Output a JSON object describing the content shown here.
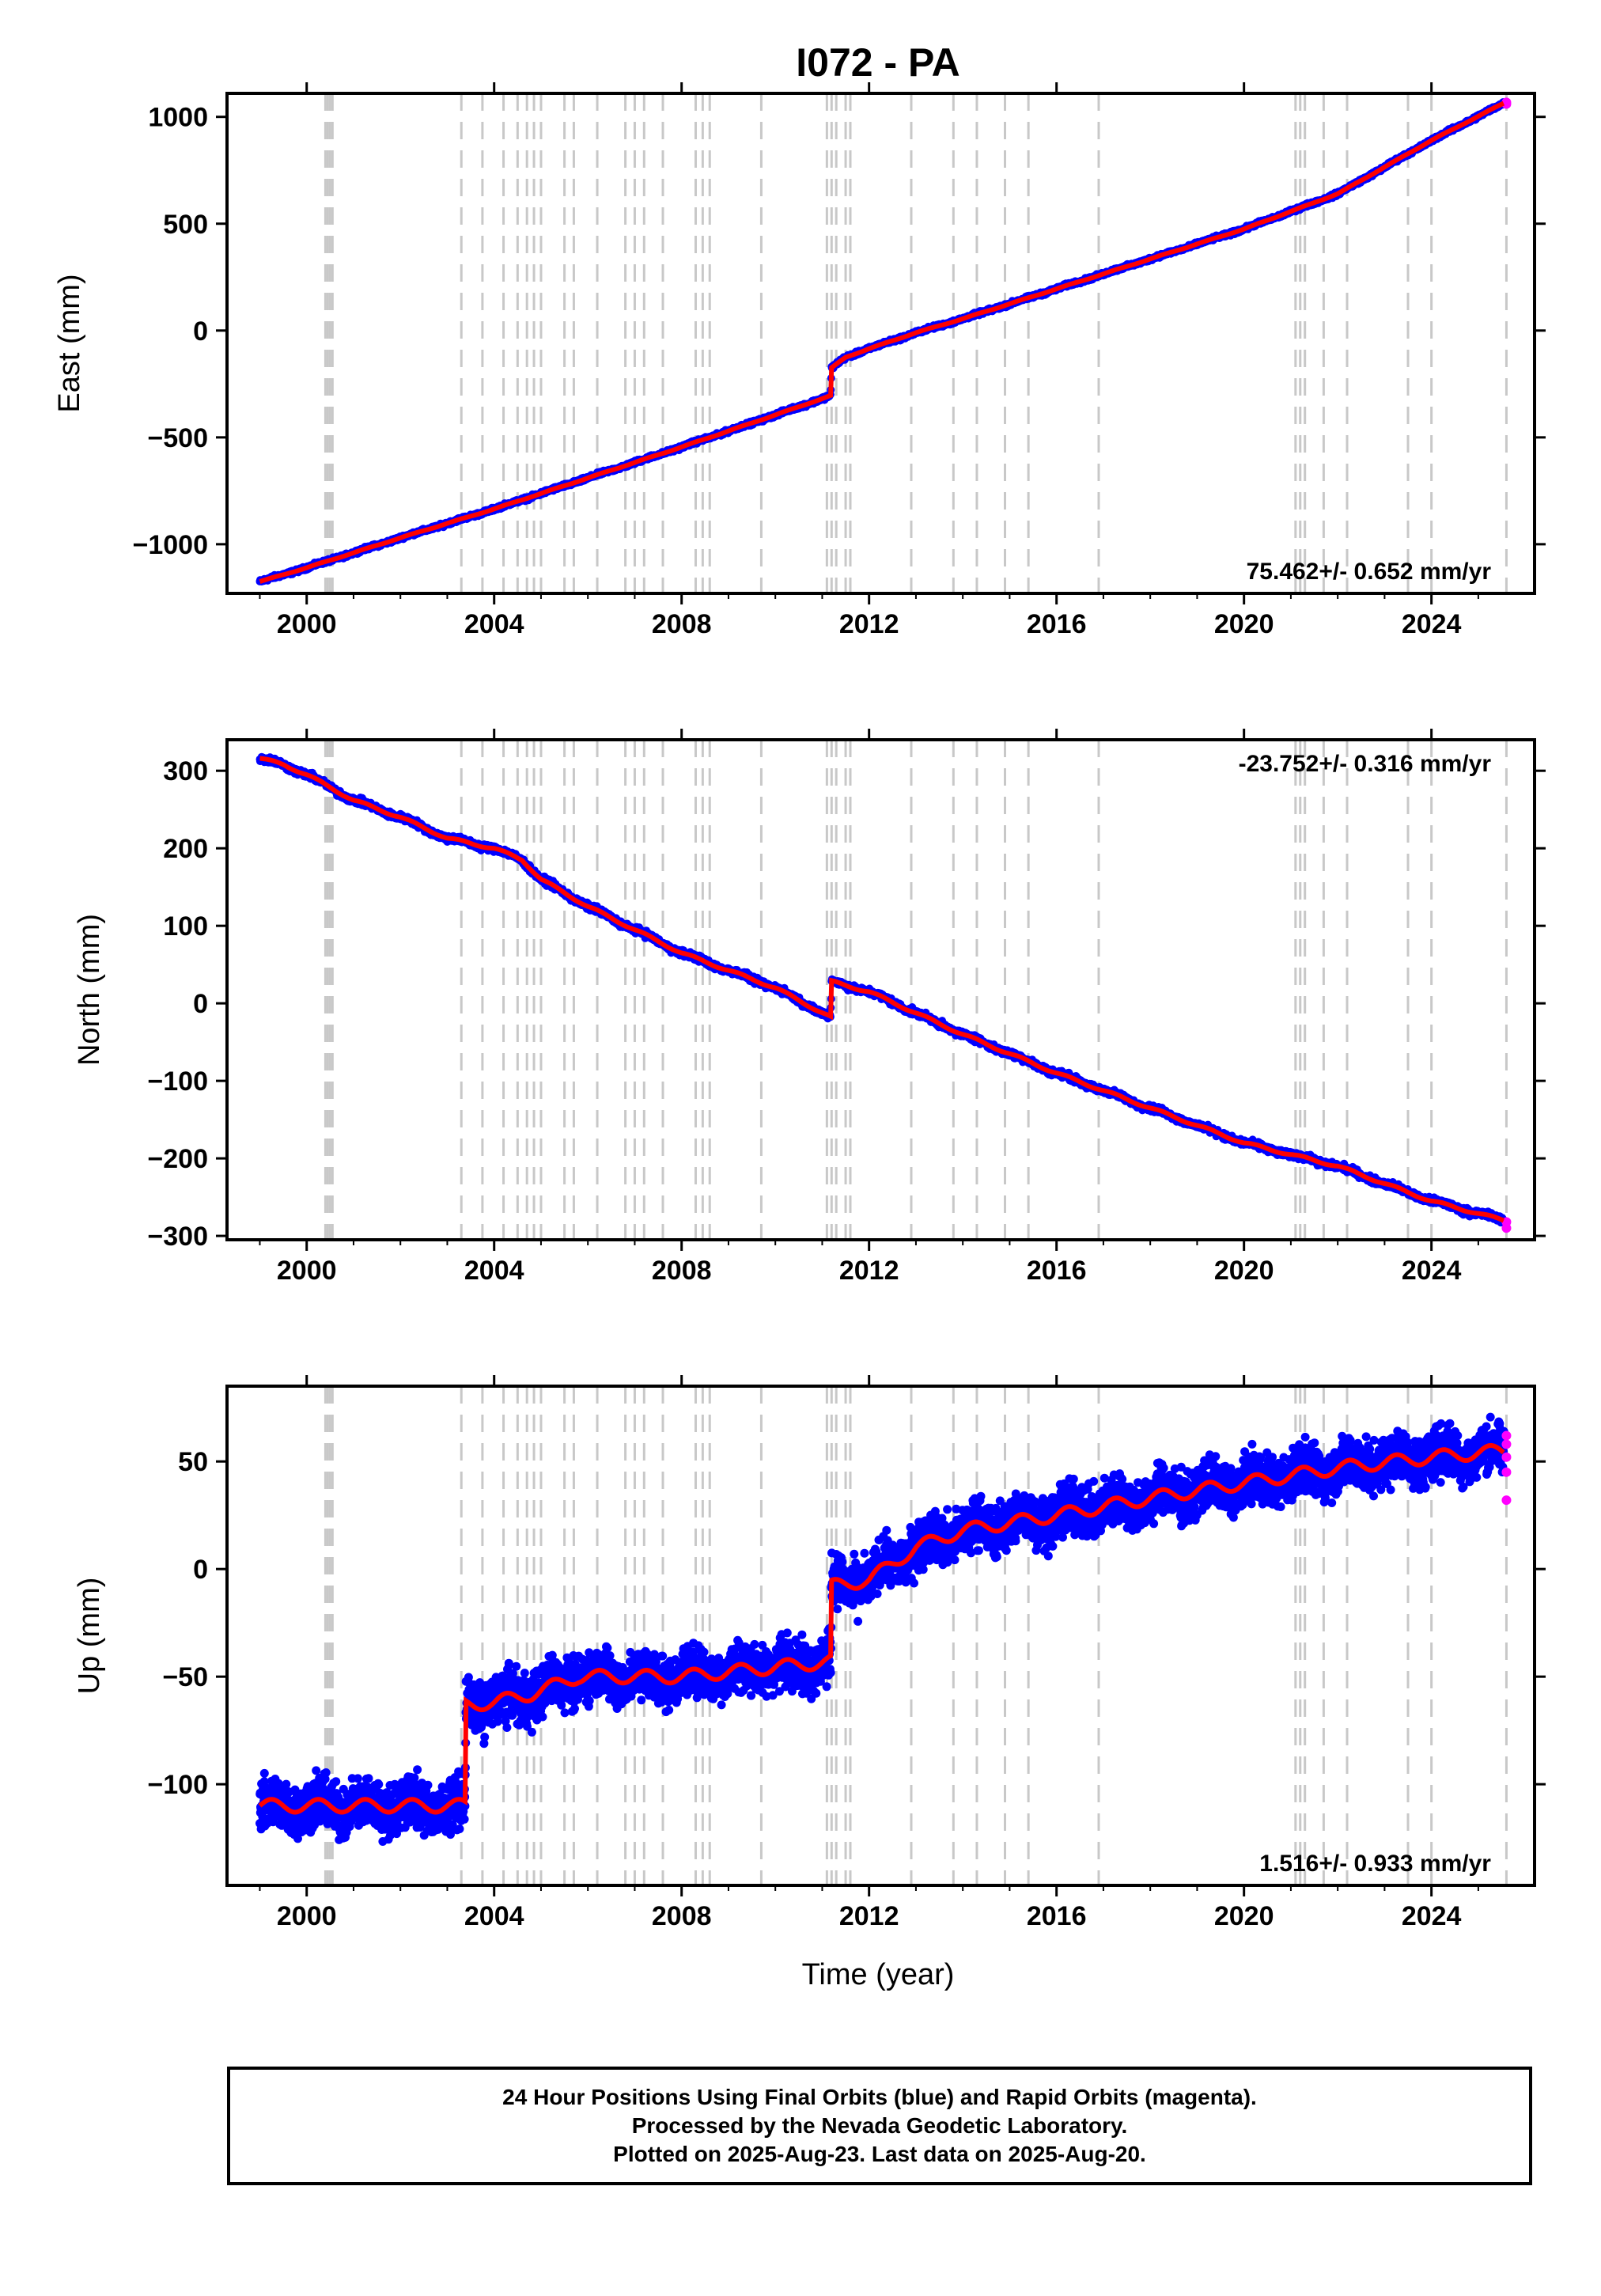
{
  "title": "I072 - PA",
  "x_axis_label": "Time (year)",
  "footer": {
    "line1": "24 Hour Positions Using Final Orbits (blue) and Rapid Orbits (magenta).",
    "line2": "Processed by the Nevada Geodetic Laboratory.",
    "line3": "Plotted on 2025-Aug-23. Last data on 2025-Aug-20."
  },
  "colors": {
    "final": "#0000ff",
    "rapid": "#ff00ff",
    "model": "#ff0000",
    "events": "#c8c8c8"
  },
  "chart_data": [
    {
      "type": "scatter",
      "ylabel": "East (mm)",
      "xlim": [
        1998.3,
        2026.2
      ],
      "ylim": [
        -1230,
        1110
      ],
      "xticks": [
        2000,
        2004,
        2008,
        2012,
        2016,
        2020,
        2024
      ],
      "yticks": [
        -1000,
        -500,
        0,
        500,
        1000
      ],
      "rate": "75.462+/- 0.652 mm/yr",
      "rate_position": "bottom-right",
      "series": [
        {
          "x": [
            1999.0,
            2000.0,
            2002.0,
            2004.0,
            2006.0,
            2008.0,
            2010.0,
            2011.18,
            2011.2,
            2011.5,
            2012.0,
            2013.0,
            2014.0,
            2016.0,
            2018.0,
            2020.0,
            2022.0,
            2024.0,
            2025.55
          ],
          "y": [
            -1175,
            -1110,
            -970,
            -835,
            -690,
            -545,
            -395,
            -305,
            -175,
            -125,
            -85,
            -10,
            55,
            195,
            335,
            475,
            640,
            890,
            1065
          ]
        }
      ],
      "noise_mm": 6,
      "rapid_tail_y": [
        1060,
        1068
      ]
    },
    {
      "type": "scatter",
      "ylabel": "North (mm)",
      "xlim": [
        1998.3,
        2026.2
      ],
      "ylim": [
        -305,
        340
      ],
      "xticks": [
        2000,
        2004,
        2008,
        2012,
        2016,
        2020,
        2024
      ],
      "yticks": [
        -300,
        -200,
        -100,
        0,
        100,
        200,
        300
      ],
      "rate": "-23.752+/- 0.316 mm/yr",
      "rate_position": "top-right",
      "series": [
        {
          "x": [
            1999.0,
            1999.5,
            2000.0,
            2001.0,
            2002.0,
            2003.0,
            2003.6,
            2004.0,
            2004.6,
            2005.0,
            2006.0,
            2008.0,
            2010.0,
            2011.18,
            2011.2,
            2012.0,
            2014.0,
            2016.0,
            2018.0,
            2020.0,
            2022.0,
            2024.0,
            2025.55
          ],
          "y": [
            316,
            308,
            295,
            262,
            240,
            213,
            205,
            200,
            185,
            160,
            125,
            65,
            20,
            -18,
            28,
            15,
            -40,
            -90,
            -135,
            -180,
            -210,
            -255,
            -280
          ]
        }
      ],
      "noise_mm": 3,
      "rapid_tail_y": [
        -282,
        -290
      ]
    },
    {
      "type": "scatter",
      "ylabel": "Up (mm)",
      "xlim": [
        1998.3,
        2026.2
      ],
      "ylim": [
        -147,
        85
      ],
      "xticks": [
        2000,
        2004,
        2008,
        2012,
        2016,
        2020,
        2024
      ],
      "yticks": [
        -100,
        -50,
        0,
        50
      ],
      "rate": "1.516+/- 0.933 mm/yr",
      "rate_position": "bottom-right",
      "series": [
        {
          "x": [
            1999.0,
            2001.0,
            2003.38,
            2003.4,
            2004.0,
            2004.8,
            2005.8,
            2008.0,
            2011.18,
            2011.2,
            2012.0,
            2013.0,
            2014.0,
            2016.0,
            2018.0,
            2020.0,
            2022.0,
            2024.0,
            2025.55
          ],
          "y": [
            -110,
            -110,
            -110,
            -63,
            -62,
            -58,
            -50,
            -50,
            -43,
            -8,
            -5,
            10,
            18,
            25,
            33,
            40,
            47,
            52,
            55
          ]
        }
      ],
      "noise_mm": 8,
      "rapid_tail_y": [
        32,
        45,
        52,
        58,
        62
      ]
    }
  ],
  "event_lines": [
    2000.4,
    2000.45,
    2000.5,
    2000.55,
    2003.3,
    2003.75,
    2004.2,
    2004.5,
    2004.7,
    2004.85,
    2005.0,
    2005.5,
    2005.7,
    2006.2,
    2006.8,
    2007.0,
    2007.2,
    2007.6,
    2008.3,
    2008.45,
    2008.6,
    2009.7,
    2011.1,
    2011.2,
    2011.3,
    2011.5,
    2011.6,
    2012.9,
    2013.8,
    2014.3,
    2014.9,
    2015.4,
    2016.9,
    2021.1,
    2021.2,
    2021.3,
    2021.7,
    2022.2,
    2023.5,
    2024.0,
    2025.6
  ]
}
